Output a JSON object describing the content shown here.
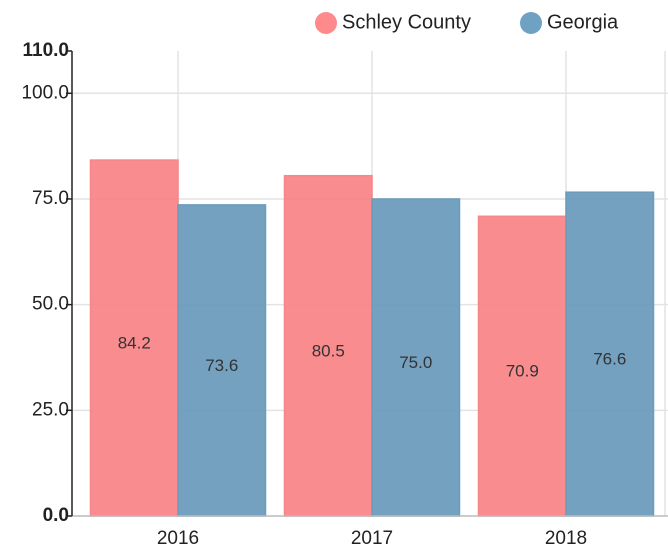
{
  "chart_data": {
    "type": "bar",
    "categories": [
      "2016",
      "2017",
      "2018"
    ],
    "series": [
      {
        "name": "Schley County",
        "color": "#ff8a8c",
        "values": [
          84.2,
          80.5,
          70.9
        ]
      },
      {
        "name": "Georgia",
        "color": "#6fa1c2",
        "values": [
          73.6,
          75.0,
          76.6
        ],
        "value_labels": [
          "73.6",
          "75.0",
          "76.6"
        ]
      }
    ],
    "ylim": [
      0,
      110
    ],
    "yticks": [
      {
        "value": 0,
        "label": "0.0"
      },
      {
        "value": 25,
        "label": "25.0"
      },
      {
        "value": 50,
        "label": "50.0"
      },
      {
        "value": 75,
        "label": "75.0"
      },
      {
        "value": 100,
        "label": "100.0"
      },
      {
        "value": 110,
        "label": "110.0"
      }
    ],
    "grid": true
  }
}
